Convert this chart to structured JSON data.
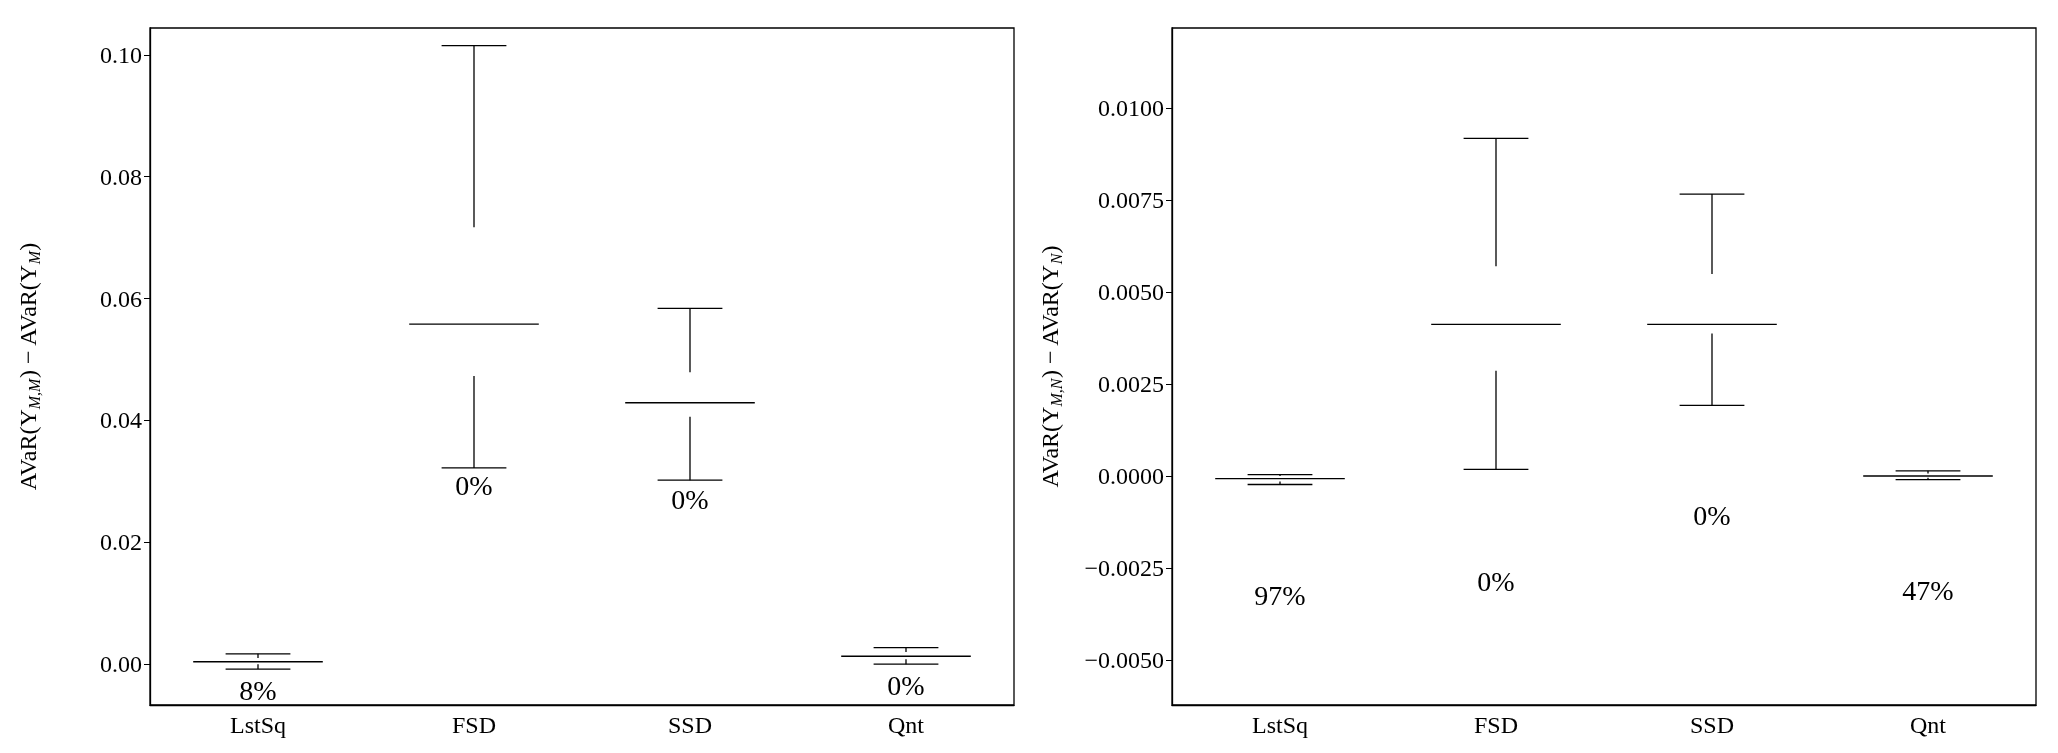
{
  "chart_data": [
    {
      "type": "box",
      "ylabel": "AVaR(Y$_{M,M}$) − AVaR(Y$_{M}$)",
      "categories": [
        "LstSq",
        "FSD",
        "SSD",
        "Qnt"
      ],
      "boxes": [
        {
          "low": -0.0008,
          "q1": 0.0,
          "median": 0.0004,
          "q3": 0.001,
          "high": 0.0017
        },
        {
          "low": 0.0322,
          "q1": 0.0473,
          "median": 0.0558,
          "q3": 0.0717,
          "high": 0.1015
        },
        {
          "low": 0.0302,
          "q1": 0.0406,
          "median": 0.0429,
          "q3": 0.0479,
          "high": 0.0584
        },
        {
          "low": 0.0,
          "q1": 0.0008,
          "median": 0.0013,
          "q3": 0.002,
          "high": 0.0027
        }
      ],
      "ylim": [
        -0.0067,
        0.1044
      ],
      "yticks": [
        {
          "value": 0,
          "label": "0.00"
        },
        0.02,
        0.04,
        0.06,
        0.08,
        {
          "value": 0.1,
          "label": "0.10"
        }
      ],
      "annotations": [
        "8%",
        "0%",
        "0%",
        "0%"
      ],
      "grid": false
    },
    {
      "type": "box",
      "ylabel": "AVaR(Y$_{M,N}$) − AVaR(Y$_{N}$)",
      "categories": [
        "LstSq",
        "FSD",
        "SSD",
        "Qnt"
      ],
      "boxes": [
        {
          "low": -0.00023,
          "q1": -0.00015,
          "median": -7e-05,
          "q3": 0.0,
          "high": 4e-05
        },
        {
          "low": 0.00018,
          "q1": 0.00286,
          "median": 0.00412,
          "q3": 0.0057,
          "high": 0.00917
        },
        {
          "low": 0.00192,
          "q1": 0.00387,
          "median": 0.00412,
          "q3": 0.00549,
          "high": 0.00766
        },
        {
          "low": -0.0001,
          "q1": -5e-05,
          "median": 0.0,
          "q3": 7e-05,
          "high": 0.00014
        }
      ],
      "ylim": [
        -0.00622,
        0.01217
      ],
      "yticks": [
        {
          "value": -0.005,
          "label": "−0.0050"
        },
        {
          "value": -0.0025,
          "label": "−0.0025"
        },
        {
          "value": 0,
          "label": "0.0000"
        },
        {
          "value": 0.0025,
          "label": "0.0025"
        },
        {
          "value": 0.005,
          "label": "0.0050"
        },
        {
          "value": 0.0075,
          "label": "0.0075"
        },
        {
          "value": 0.01,
          "label": "0.0100"
        }
      ],
      "annotations": [
        "97%",
        "0%",
        "0%",
        "47%"
      ],
      "grid": false
    }
  ]
}
